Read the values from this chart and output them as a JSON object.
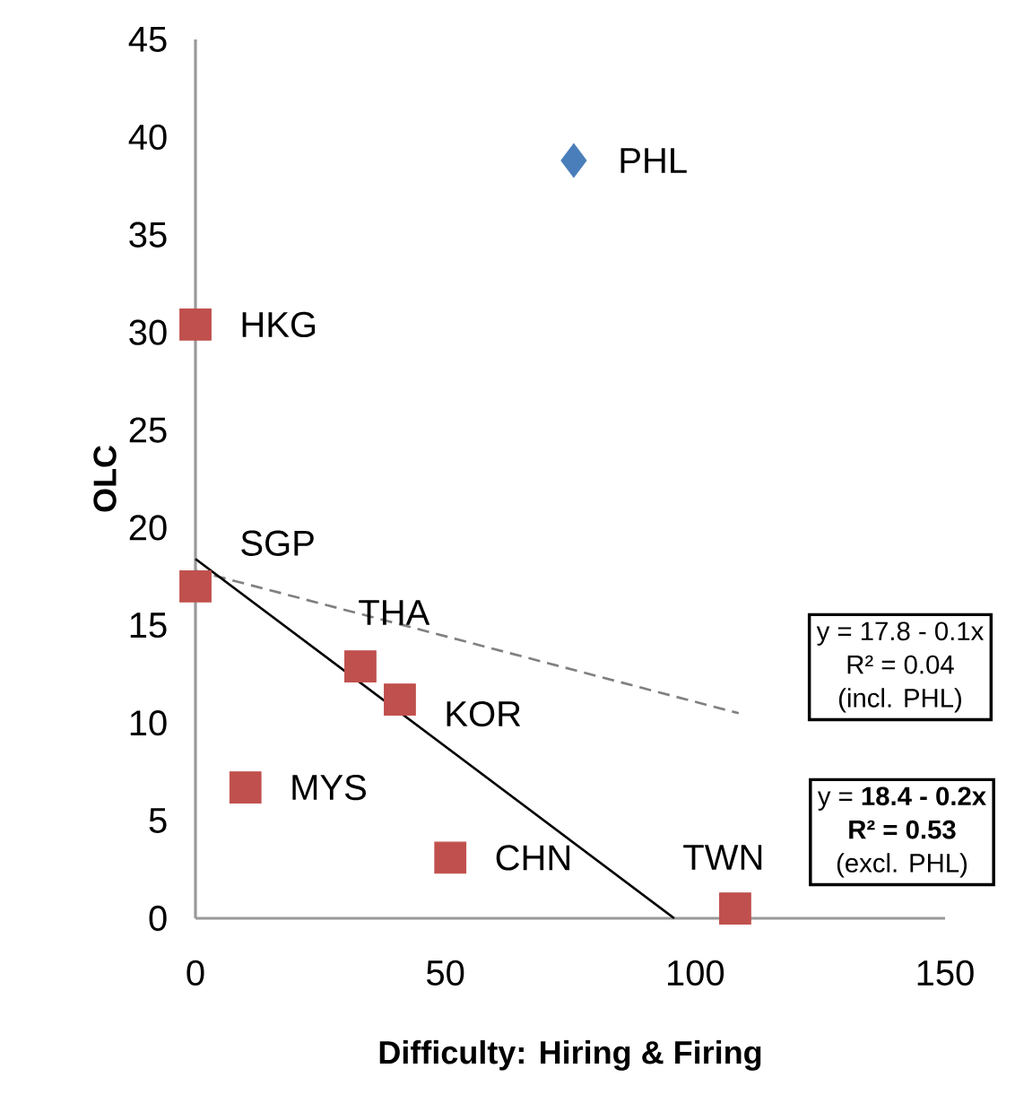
{
  "chart_data": {
    "type": "scatter",
    "xlabel": "Difficulty: Hiring & Firing",
    "ylabel": "OLC",
    "xlim": [
      0,
      150
    ],
    "xticks": [
      0,
      50,
      100,
      150
    ],
    "ylim": [
      0,
      45
    ],
    "yticks": [
      0,
      5,
      10,
      15,
      20,
      25,
      30,
      35,
      40,
      45
    ],
    "grid": false,
    "series": [
      {
        "marker": "diamond",
        "color": "#4a7ebb",
        "x": [
          75.7
        ],
        "values": [
          38.8
        ]
      },
      {
        "marker": "square",
        "color": "#c0504d",
        "x": [
          0,
          0,
          33,
          40.9,
          10,
          51,
          108
        ],
        "values": [
          30.4,
          17.0,
          12.9,
          11.2,
          6.7,
          3.1,
          0.5
        ]
      },
      {
        "type": "line",
        "marker": "none",
        "line_style": "dashed",
        "color": "#808080",
        "x": [
          0,
          108.7
        ],
        "values": [
          17.8,
          10.5
        ]
      },
      {
        "type": "line",
        "marker": "none",
        "line_style": "solid",
        "color": "#000000",
        "x": [
          0,
          95.8
        ],
        "values": [
          18.4,
          0
        ]
      }
    ],
    "annotations": [
      {
        "text": "PHL",
        "x": 75.7,
        "y": 38.8
      },
      {
        "text": "HKG",
        "x": 0,
        "y": 30.4
      },
      {
        "text": "SGP",
        "x": 0,
        "y": 17.0
      },
      {
        "text": "THA",
        "x": 33,
        "y": 12.9
      },
      {
        "text": "KOR",
        "x": 40.9,
        "y": 11.2
      },
      {
        "text": "MYS",
        "x": 10,
        "y": 6.7
      },
      {
        "text": "CHN",
        "x": 51,
        "y": 3.1
      },
      {
        "text": "TWN",
        "x": 108,
        "y": 0.55
      },
      "y = 17.8 - 0.1x",
      "R² = 0.04",
      "(incl. PHL)",
      "y = **18.4 - 0.2x**",
      "**R² = 0.53**",
      "(excl. PHL)"
    ]
  }
}
